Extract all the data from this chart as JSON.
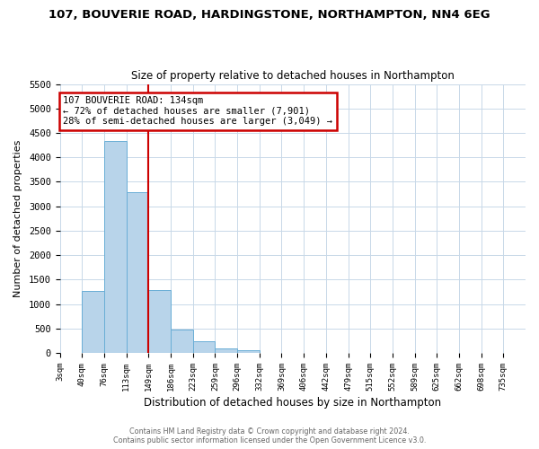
{
  "title": "107, BOUVERIE ROAD, HARDINGSTONE, NORTHAMPTON, NN4 6EG",
  "subtitle": "Size of property relative to detached houses in Northampton",
  "xlabel": "Distribution of detached houses by size in Northampton",
  "ylabel": "Number of detached properties",
  "bar_color": "#b8d4ea",
  "bar_edge_color": "#6aaed6",
  "grid_color": "#c8d8e8",
  "annotation_box_color": "#cc0000",
  "annotation_line_color": "#cc0000",
  "bin_labels": [
    "3sqm",
    "40sqm",
    "76sqm",
    "113sqm",
    "149sqm",
    "186sqm",
    "223sqm",
    "259sqm",
    "296sqm",
    "332sqm",
    "369sqm",
    "406sqm",
    "442sqm",
    "479sqm",
    "515sqm",
    "552sqm",
    "589sqm",
    "625sqm",
    "662sqm",
    "698sqm",
    "735sqm"
  ],
  "bar_values": [
    0,
    1270,
    4340,
    3290,
    1290,
    480,
    235,
    90,
    55,
    0,
    0,
    0,
    0,
    0,
    0,
    0,
    0,
    0,
    0,
    0,
    0
  ],
  "ylim": [
    0,
    5500
  ],
  "yticks": [
    0,
    500,
    1000,
    1500,
    2000,
    2500,
    3000,
    3500,
    4000,
    4500,
    5000,
    5500
  ],
  "property_size": 134,
  "property_name": "107 BOUVERIE ROAD",
  "pct_smaller": 72,
  "n_smaller": 7901,
  "pct_larger_semi": 28,
  "n_larger_semi": 3049,
  "vline_bin_index": 4,
  "footer_lines": [
    "Contains HM Land Registry data © Crown copyright and database right 2024.",
    "Contains public sector information licensed under the Open Government Licence v3.0."
  ]
}
